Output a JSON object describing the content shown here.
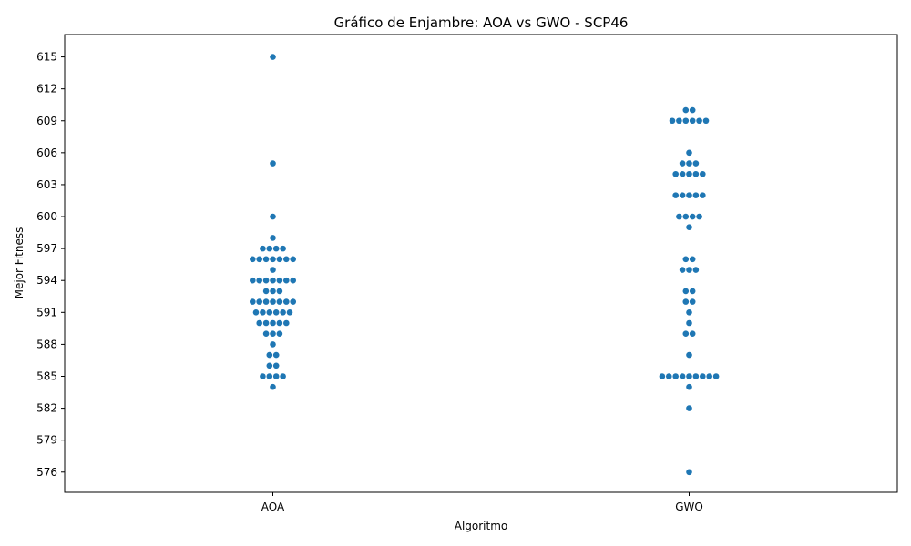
{
  "chart_data": {
    "type": "scatter",
    "subtype": "swarm",
    "title": "Gráfico de Enjambre: AOA vs GWO - SCP46",
    "xlabel": "Algoritmo",
    "ylabel": "Mejor Fitness",
    "categories": [
      "AOA",
      "GWO"
    ],
    "yticks": [
      576,
      579,
      582,
      585,
      588,
      591,
      594,
      597,
      600,
      603,
      606,
      609,
      612,
      615
    ],
    "ylim": [
      574.1,
      617.1
    ],
    "grid": false,
    "point_color": "#1f77b4",
    "series": [
      {
        "category": "AOA",
        "values": [
          615,
          605,
          600,
          598,
          597,
          597,
          597,
          597,
          596,
          596,
          596,
          596,
          596,
          596,
          596,
          595,
          594,
          594,
          594,
          594,
          594,
          594,
          594,
          593,
          593,
          593,
          592,
          592,
          592,
          592,
          592,
          592,
          592,
          591,
          591,
          591,
          591,
          591,
          591,
          590,
          590,
          590,
          590,
          590,
          589,
          589,
          589,
          588,
          587,
          587,
          586,
          586,
          585,
          585,
          585,
          585,
          584
        ]
      },
      {
        "category": "GWO",
        "values": [
          610,
          610,
          609,
          609,
          609,
          609,
          609,
          609,
          606,
          605,
          605,
          605,
          604,
          604,
          604,
          604,
          604,
          602,
          602,
          602,
          602,
          602,
          600,
          600,
          600,
          600,
          599,
          596,
          596,
          595,
          595,
          595,
          593,
          593,
          592,
          592,
          591,
          590,
          589,
          589,
          587,
          585,
          585,
          585,
          585,
          585,
          585,
          585,
          585,
          585,
          584,
          582,
          576
        ]
      }
    ]
  }
}
